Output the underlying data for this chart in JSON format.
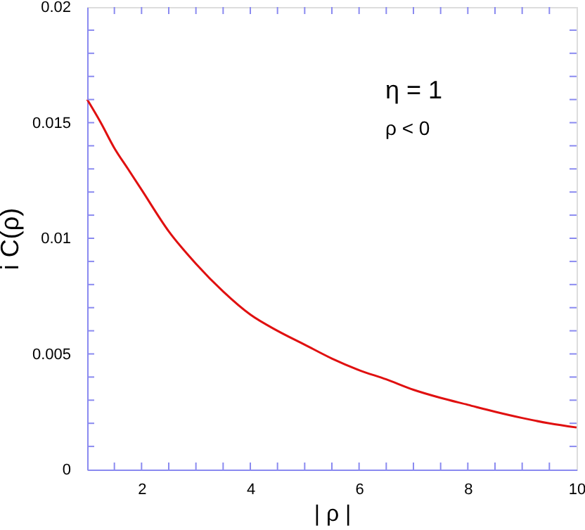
{
  "chart_data": {
    "type": "line",
    "xlabel": "| ρ |",
    "ylabel": "i C(ρ)",
    "x": [
      1,
      1.25,
      1.5,
      1.75,
      2,
      2.5,
      3,
      3.5,
      4,
      4.5,
      5,
      5.5,
      6,
      6.5,
      7,
      7.5,
      8,
      8.5,
      9,
      9.5,
      10
    ],
    "series": [
      {
        "color": "#e01010",
        "values": [
          0.016,
          0.015,
          0.0139,
          0.013,
          0.0121,
          0.0103,
          0.0089,
          0.0077,
          0.0067,
          0.006,
          0.0054,
          0.0048,
          0.0043,
          0.0039,
          0.00345,
          0.0031,
          0.0028,
          0.0025,
          0.00223,
          0.002,
          0.00182
        ]
      }
    ],
    "xlim": [
      1,
      10
    ],
    "xticks": [
      {
        "value": 1.5,
        "label": null
      },
      2,
      {
        "value": 2.5,
        "label": null
      },
      {
        "value": 3,
        "label": null
      },
      {
        "value": 3.5,
        "label": null
      },
      4,
      {
        "value": 4.5,
        "label": null
      },
      {
        "value": 5,
        "label": null
      },
      {
        "value": 5.5,
        "label": null
      },
      6,
      {
        "value": 6.5,
        "label": null
      },
      {
        "value": 7,
        "label": null
      },
      {
        "value": 7.5,
        "label": null
      },
      8,
      {
        "value": 8.5,
        "label": null
      },
      {
        "value": 9,
        "label": null
      },
      {
        "value": 9.5,
        "label": null
      },
      10
    ],
    "ylim": [
      0,
      0.02
    ],
    "yticks": [
      0,
      {
        "value": 0.001,
        "label": null
      },
      {
        "value": 0.002,
        "label": null
      },
      {
        "value": 0.003,
        "label": null
      },
      {
        "value": 0.004,
        "label": null
      },
      0.005,
      {
        "value": 0.006,
        "label": null
      },
      {
        "value": 0.007,
        "label": null
      },
      {
        "value": 0.008,
        "label": null
      },
      {
        "value": 0.009,
        "label": null
      },
      0.01,
      {
        "value": 0.011,
        "label": null
      },
      {
        "value": 0.012,
        "label": null
      },
      {
        "value": 0.013,
        "label": null
      },
      {
        "value": 0.014,
        "label": null
      },
      0.015,
      {
        "value": 0.016,
        "label": null
      },
      {
        "value": 0.017,
        "label": null
      },
      {
        "value": 0.018,
        "label": null
      },
      {
        "value": 0.019,
        "label": null
      },
      0.02
    ],
    "annotations": [
      "η = 1",
      "ρ < 0"
    ],
    "grid": false,
    "marker": "none",
    "line_style": "solid"
  }
}
